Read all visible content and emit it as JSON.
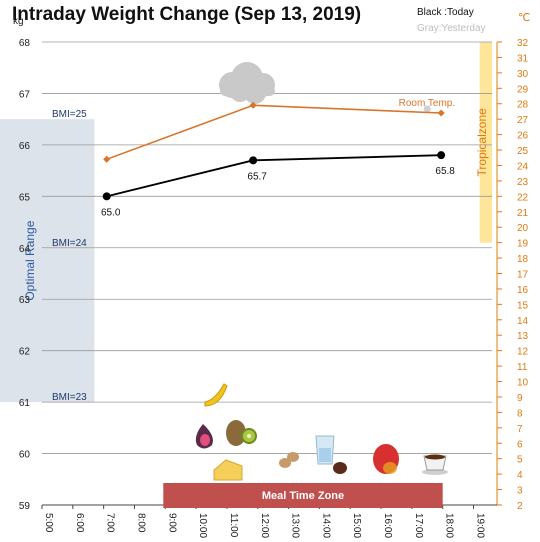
{
  "chart_data": {
    "type": "line",
    "title": "Intraday Weight Change (Sep 13, 2019)",
    "legend": {
      "today": "Black :Today",
      "yesterday": "Gray:Yesterday"
    },
    "y_left": {
      "unit": "kg",
      "range": [
        59,
        68
      ],
      "ticks": [
        "59",
        "60",
        "61",
        "62",
        "63",
        "64",
        "65",
        "66",
        "67",
        "68"
      ]
    },
    "y_right": {
      "unit": "℃",
      "range": [
        2,
        32
      ],
      "ticks": [
        "2",
        "3",
        "4",
        "5",
        "6",
        "7",
        "8",
        "9",
        "10",
        "11",
        "12",
        "13",
        "14",
        "15",
        "16",
        "17",
        "18",
        "19",
        "20",
        "21",
        "22",
        "23",
        "24",
        "25",
        "26",
        "27",
        "28",
        "29",
        "30",
        "31",
        "32"
      ]
    },
    "x": {
      "range_hours": [
        5,
        19.6
      ],
      "ticks": [
        "5:00",
        "6:00",
        "7:00",
        "8:00",
        "9:00",
        "10:00",
        "11:00",
        "12:00",
        "13:00",
        "14:00",
        "15:00",
        "16:00",
        "17:00",
        "18:00",
        "19:00"
      ]
    },
    "series": [
      {
        "id": "weight_today",
        "color": "#000000",
        "axis": "left",
        "x_hours": [
          7.1,
          11.85,
          17.95
        ],
        "values": [
          65.0,
          65.7,
          65.8
        ],
        "labels": [
          "65.0",
          "65.7",
          "65.8"
        ]
      },
      {
        "id": "room_temp",
        "name": "Room Temp.",
        "color": "#d9752a",
        "axis": "right",
        "x_hours": [
          7.1,
          11.85,
          17.95
        ],
        "values": [
          24.4,
          27.9,
          27.4
        ]
      }
    ],
    "yesterday_point": {
      "x_hours": [
        17.5
      ],
      "values": [
        66.7
      ],
      "color": "#d0d0d0"
    },
    "bands": [
      {
        "label": "Optimal Range",
        "axis": "left",
        "from": 61.0,
        "to": 66.5,
        "x_hours": [
          5.0,
          6.7
        ],
        "color": "#dde3ea"
      },
      {
        "label": "Tropicalzone",
        "axis": "right",
        "from": 19.0,
        "to": 32.0,
        "x_hours": [
          19.2,
          19.6
        ],
        "color": "#fde59a"
      }
    ],
    "bmi_lines": [
      {
        "label": "BMI=25",
        "value": 66.5
      },
      {
        "label": "BMI=24",
        "value": 64.0
      },
      {
        "label": "BMI=23",
        "value": 61.0
      }
    ],
    "meal_zone": {
      "label": "Meal Time Zone",
      "from_hours": 9.0,
      "to_hours": 18.0,
      "color": "#c0504d"
    },
    "weather_icon": "cloud-icon",
    "food_icons": [
      "banana-icon",
      "fig-icon",
      "kiwi-icon",
      "cheese-icon",
      "peanut-icon",
      "water-glass-icon",
      "date-fruit-icon",
      "mango-icon",
      "coffee-cup-icon"
    ]
  }
}
